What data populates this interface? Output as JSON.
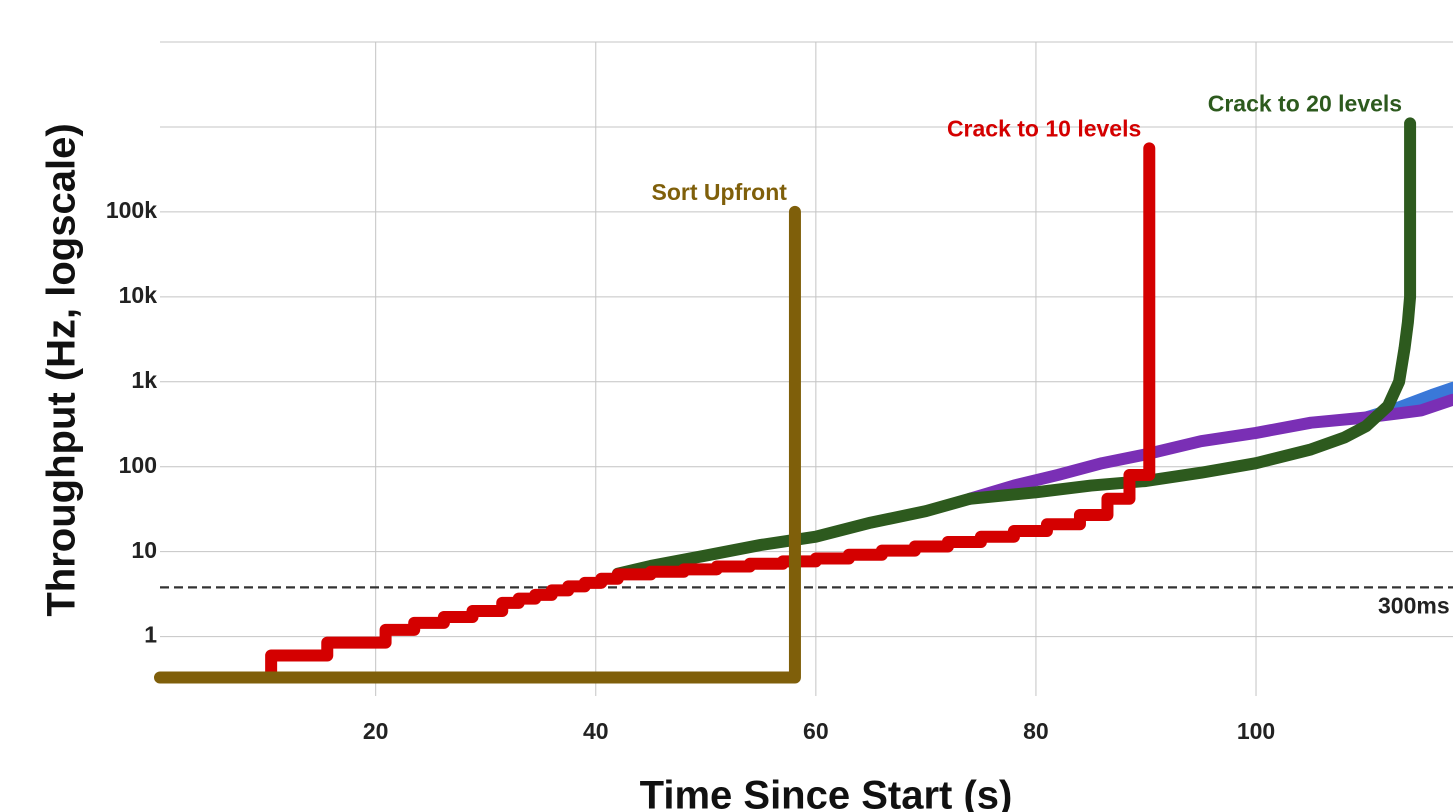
{
  "chart_data": {
    "type": "line",
    "xlabel": "Time Since Start (s)",
    "ylabel": "Throughput (Hz, logscale)",
    "xlim": [
      0.4,
      117.9
    ],
    "ylim": [
      0.2,
      10000000
    ],
    "log_y": true,
    "grid": true,
    "xticks": [
      20,
      40,
      60,
      80,
      100
    ],
    "yticks": [
      1,
      10,
      100,
      {
        "value": 1000,
        "label": "1k"
      },
      {
        "value": 10000,
        "label": "10k"
      },
      {
        "value": 100000,
        "label": "100k"
      }
    ],
    "yminor_grid": [
      1000000,
      10000000
    ],
    "reference_line": {
      "value": 3.8,
      "label": "300ms"
    },
    "series": [
      {
        "color": "#3a78d8",
        "x": [
          110,
          113,
          116,
          117.9
        ],
        "values": [
          380,
          500,
          700,
          850
        ]
      },
      {
        "color": "#7a2fb5",
        "x": [
          74,
          78,
          82,
          86,
          90,
          95,
          100,
          105,
          110,
          115,
          117.9
        ],
        "values": [
          42,
          60,
          80,
          110,
          140,
          200,
          250,
          330,
          380,
          460,
          615
        ]
      },
      {
        "name": "Crack to 20 levels",
        "color": "#2d5a1e",
        "x": [
          42,
          45,
          50,
          55,
          60,
          65,
          70,
          74,
          80,
          85,
          90,
          95,
          100,
          105,
          108,
          110,
          112,
          113,
          113.5,
          113.8,
          114,
          114
        ],
        "values": [
          5.5,
          6.8,
          9,
          12,
          15,
          22,
          30,
          42,
          50,
          60,
          68,
          85,
          110,
          160,
          220,
          300,
          520,
          1000,
          2500,
          5000,
          10000,
          1100000
        ]
      },
      {
        "name": "Crack to 10 levels",
        "color": "#d40000",
        "step": true,
        "x": [
          10.5,
          10.5,
          15.6,
          20.9,
          23.5,
          26.2,
          28.8,
          31.5,
          33,
          34.5,
          36,
          37.5,
          39,
          40.5,
          42,
          45,
          48,
          51,
          54,
          57,
          60,
          63,
          66,
          69,
          72,
          75,
          78,
          81,
          84,
          86.5,
          88.5,
          90.3
        ],
        "values": [
          0.33,
          0.6,
          0.85,
          1.2,
          1.45,
          1.7,
          2.0,
          2.5,
          2.8,
          3.1,
          3.5,
          3.9,
          4.3,
          4.8,
          5.4,
          5.8,
          6.2,
          6.7,
          7.2,
          7.7,
          8.3,
          9.2,
          10.3,
          11.5,
          13,
          15,
          17.5,
          21,
          27,
          42,
          80,
          560000
        ]
      },
      {
        "name": "Sort Upfront",
        "color": "#7f5f0a",
        "step": true,
        "x": [
          0.4,
          58.1
        ],
        "values": [
          0.33,
          100000
        ]
      }
    ]
  }
}
